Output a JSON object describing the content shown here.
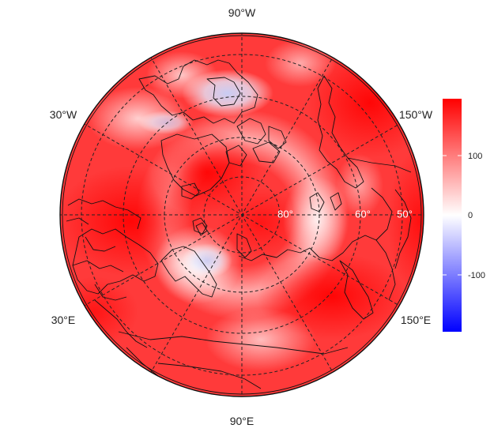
{
  "map": {
    "projection": "north-polar-stereographic",
    "lon_labels": {
      "top": "90°W",
      "upper_left": "30°W",
      "upper_right": "150°W",
      "lower_left": "30°E",
      "lower_right": "150°E",
      "bottom": "90°E"
    },
    "lat_labels": [
      "80°",
      "60°",
      "50°"
    ]
  },
  "colorbar": {
    "ticks": [
      "100",
      "0",
      "-100"
    ],
    "colors": {
      "high": "#ff0000",
      "mid": "#ffffff",
      "low": "#0000ff"
    },
    "range": [
      -190,
      190
    ]
  },
  "colors": {
    "field_base": "#ff3a3a",
    "coastline": "#111111",
    "grid": "#222222"
  }
}
